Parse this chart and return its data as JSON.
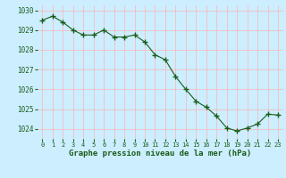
{
  "x": [
    0,
    1,
    2,
    3,
    4,
    5,
    6,
    7,
    8,
    9,
    10,
    11,
    12,
    13,
    14,
    15,
    16,
    17,
    18,
    19,
    20,
    21,
    22,
    23
  ],
  "y": [
    1029.5,
    1029.7,
    1029.4,
    1029.0,
    1028.75,
    1028.75,
    1029.0,
    1028.65,
    1028.65,
    1028.75,
    1028.4,
    1027.75,
    1027.5,
    1026.65,
    1026.0,
    1025.4,
    1025.1,
    1024.65,
    1024.05,
    1023.9,
    1024.05,
    1024.25,
    1024.75,
    1024.7
  ],
  "line_color": "#1a5c1a",
  "marker": "+",
  "marker_size": 4,
  "marker_color": "#1a5c1a",
  "bg_color": "#cceeff",
  "grid_color": "#ffb3b3",
  "xlabel": "Graphe pression niveau de la mer (hPa)",
  "xlabel_color": "#1a5c1a",
  "tick_color": "#1a5c1a",
  "ylim": [
    1023.5,
    1030.25
  ],
  "yticks": [
    1024,
    1025,
    1026,
    1027,
    1028,
    1029,
    1030
  ],
  "xticks": [
    0,
    1,
    2,
    3,
    4,
    5,
    6,
    7,
    8,
    9,
    10,
    11,
    12,
    13,
    14,
    15,
    16,
    17,
    18,
    19,
    20,
    21,
    22,
    23
  ]
}
